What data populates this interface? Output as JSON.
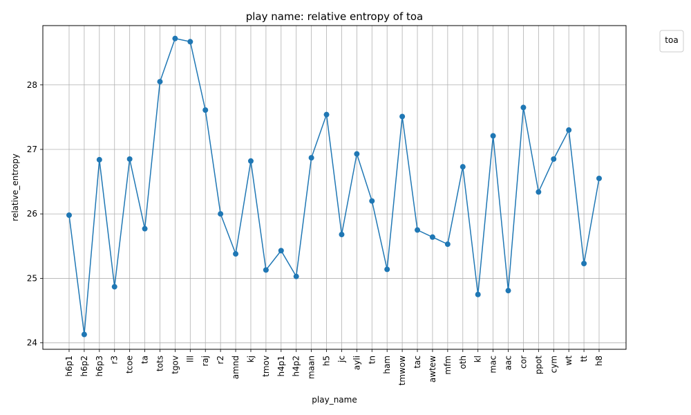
{
  "chart_data": {
    "type": "line",
    "title": "play name: relative entropy of toa",
    "xlabel": "play_name",
    "ylabel": "relative_entropy",
    "legend_title": "toa",
    "legend_position": "outside-top-right",
    "grid": true,
    "ylim": [
      23.9,
      28.92
    ],
    "yticks": [
      24,
      25,
      26,
      27,
      28
    ],
    "color": "#1f77b4",
    "categories": [
      "h6p1",
      "h6p2",
      "h6p3",
      "r3",
      "tcoe",
      "ta",
      "tots",
      "tgov",
      "lll",
      "raj",
      "r2",
      "amnd",
      "kj",
      "tmov",
      "h4p1",
      "h4p2",
      "maan",
      "h5",
      "jc",
      "ayli",
      "tn",
      "ham",
      "tmwow",
      "tac",
      "awtew",
      "mfm",
      "oth",
      "kl",
      "mac",
      "aac",
      "cor",
      "ppot",
      "cym",
      "wt",
      "tt",
      "h8"
    ],
    "series": [
      {
        "values": [
          25.98,
          24.13,
          26.84,
          24.87,
          26.85,
          25.77,
          28.05,
          28.72,
          28.67,
          27.61,
          26.0,
          25.38,
          26.82,
          25.13,
          25.43,
          25.03,
          26.87,
          27.54,
          25.68,
          26.93,
          26.2,
          25.14,
          27.51,
          25.75,
          25.64,
          25.53,
          26.73,
          24.75,
          27.21,
          24.81,
          27.65,
          26.34,
          26.85,
          27.3,
          25.23,
          26.55
        ]
      }
    ]
  }
}
